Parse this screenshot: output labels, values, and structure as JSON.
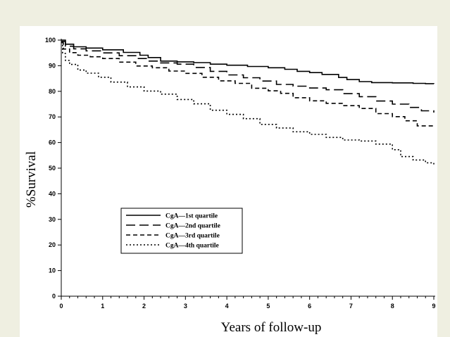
{
  "chart_data": {
    "type": "line",
    "title": "",
    "xlabel": "Years of follow-up",
    "ylabel": "%Survival",
    "xlim": [
      0,
      9
    ],
    "ylim": [
      0,
      100
    ],
    "x_ticks": [
      0,
      1,
      2,
      3,
      4,
      5,
      6,
      7,
      8,
      9
    ],
    "y_ticks": [
      0,
      10,
      20,
      30,
      40,
      50,
      60,
      70,
      80,
      90,
      100
    ],
    "grid": false,
    "legend_position": "lower-left",
    "series": [
      {
        "name": "CgA—1st quartile",
        "dash": "solid",
        "color": "#000000",
        "points": [
          [
            0,
            100
          ],
          [
            0.1,
            98.4
          ],
          [
            0.3,
            97.4
          ],
          [
            0.6,
            96.9
          ],
          [
            1.0,
            96.2
          ],
          [
            1.5,
            95.2
          ],
          [
            1.9,
            94.1
          ],
          [
            2.1,
            93.2
          ],
          [
            2.4,
            91.8
          ],
          [
            2.8,
            91.5
          ],
          [
            3.2,
            91.2
          ],
          [
            3.6,
            90.6
          ],
          [
            4.0,
            90.2
          ],
          [
            4.5,
            89.7
          ],
          [
            5.0,
            89.2
          ],
          [
            5.4,
            88.6
          ],
          [
            5.7,
            87.8
          ],
          [
            6.0,
            87.3
          ],
          [
            6.3,
            86.6
          ],
          [
            6.7,
            85.4
          ],
          [
            6.9,
            84.6
          ],
          [
            7.2,
            83.8
          ],
          [
            7.5,
            83.4
          ],
          [
            8.0,
            83.3
          ],
          [
            8.5,
            83.1
          ],
          [
            8.8,
            83.0
          ],
          [
            9.0,
            82.9
          ]
        ]
      },
      {
        "name": "CgA—2nd quartile",
        "dash": "long-dash",
        "color": "#000000",
        "points": [
          [
            0,
            99.5
          ],
          [
            0.1,
            97.6
          ],
          [
            0.3,
            96.6
          ],
          [
            0.6,
            95.8
          ],
          [
            1.0,
            95.0
          ],
          [
            1.4,
            93.9
          ],
          [
            1.8,
            92.8
          ],
          [
            2.1,
            91.8
          ],
          [
            2.4,
            91.1
          ],
          [
            2.8,
            90.6
          ],
          [
            3.2,
            89.3
          ],
          [
            3.6,
            87.8
          ],
          [
            4.0,
            86.4
          ],
          [
            4.4,
            85.3
          ],
          [
            4.8,
            84.0
          ],
          [
            5.2,
            82.7
          ],
          [
            5.6,
            82.0
          ],
          [
            6.0,
            81.3
          ],
          [
            6.4,
            80.6
          ],
          [
            6.8,
            79.1
          ],
          [
            7.2,
            77.9
          ],
          [
            7.6,
            76.2
          ],
          [
            8.0,
            75.0
          ],
          [
            8.4,
            73.7
          ],
          [
            8.7,
            72.4
          ],
          [
            9.0,
            71.7
          ]
        ]
      },
      {
        "name": "CgA—3rd quartile",
        "dash": "short-dash",
        "color": "#000000",
        "points": [
          [
            0,
            99.0
          ],
          [
            0.05,
            96.5
          ],
          [
            0.2,
            95.1
          ],
          [
            0.4,
            94.1
          ],
          [
            0.7,
            93.5
          ],
          [
            1.0,
            92.8
          ],
          [
            1.4,
            91.4
          ],
          [
            1.8,
            89.9
          ],
          [
            2.2,
            89.2
          ],
          [
            2.6,
            87.9
          ],
          [
            3.0,
            87.0
          ],
          [
            3.4,
            85.5
          ],
          [
            3.8,
            84.1
          ],
          [
            4.2,
            83.1
          ],
          [
            4.6,
            81.2
          ],
          [
            5.0,
            80.2
          ],
          [
            5.3,
            79.2
          ],
          [
            5.6,
            77.5
          ],
          [
            6.0,
            76.3
          ],
          [
            6.4,
            75.3
          ],
          [
            6.8,
            74.4
          ],
          [
            7.2,
            73.3
          ],
          [
            7.6,
            71.3
          ],
          [
            8.0,
            70.1
          ],
          [
            8.3,
            68.5
          ],
          [
            8.6,
            66.5
          ],
          [
            9.0,
            66.0
          ]
        ]
      },
      {
        "name": "CgA—4th quartile",
        "dash": "dotted",
        "color": "#000000",
        "points": [
          [
            0,
            99.0
          ],
          [
            0.03,
            94.8
          ],
          [
            0.1,
            92.1
          ],
          [
            0.2,
            90.5
          ],
          [
            0.4,
            88.3
          ],
          [
            0.6,
            87.1
          ],
          [
            0.9,
            85.5
          ],
          [
            1.2,
            83.6
          ],
          [
            1.6,
            81.7
          ],
          [
            2.0,
            80.1
          ],
          [
            2.4,
            78.9
          ],
          [
            2.8,
            76.8
          ],
          [
            3.2,
            75.1
          ],
          [
            3.6,
            72.6
          ],
          [
            4.0,
            71.0
          ],
          [
            4.4,
            69.3
          ],
          [
            4.8,
            67.1
          ],
          [
            5.2,
            65.7
          ],
          [
            5.6,
            64.2
          ],
          [
            6.0,
            63.2
          ],
          [
            6.4,
            62.0
          ],
          [
            6.8,
            61.0
          ],
          [
            7.2,
            60.6
          ],
          [
            7.6,
            59.4
          ],
          [
            8.0,
            57.2
          ],
          [
            8.2,
            54.5
          ],
          [
            8.5,
            53.2
          ],
          [
            8.8,
            52.1
          ],
          [
            9.0,
            51.0
          ]
        ]
      }
    ]
  }
}
